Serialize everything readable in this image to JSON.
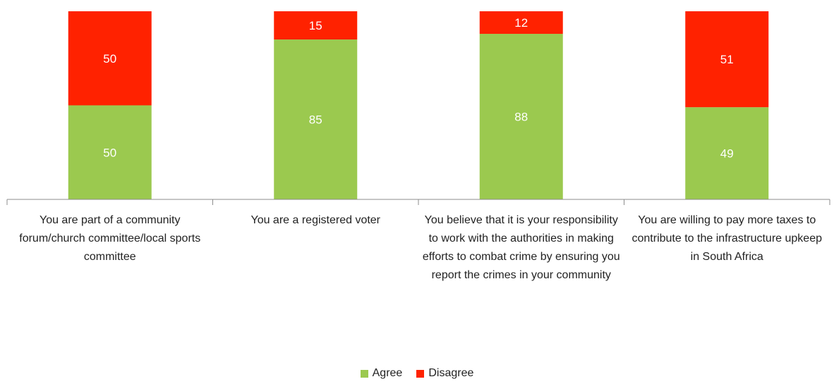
{
  "chart_data": {
    "type": "bar",
    "stacked": true,
    "categories": [
      "You are part of a community forum/church committee/local sports committee",
      "You are a registered voter",
      "You believe that it is your responsibility to work with the authorities in making efforts to combat crime by ensuring you report the crimes in your community",
      "You are willing to pay more taxes to contribute to the infrastructure upkeep in South Africa"
    ],
    "series": [
      {
        "name": "Agree",
        "color": "#9bc94f",
        "values": [
          50,
          85,
          88,
          49
        ]
      },
      {
        "name": "Disagree",
        "color": "#ff2200",
        "values": [
          50,
          15,
          12,
          51
        ]
      }
    ],
    "ylim": [
      0,
      100
    ],
    "grid": false,
    "legend": "bottom",
    "data_labels": true
  }
}
